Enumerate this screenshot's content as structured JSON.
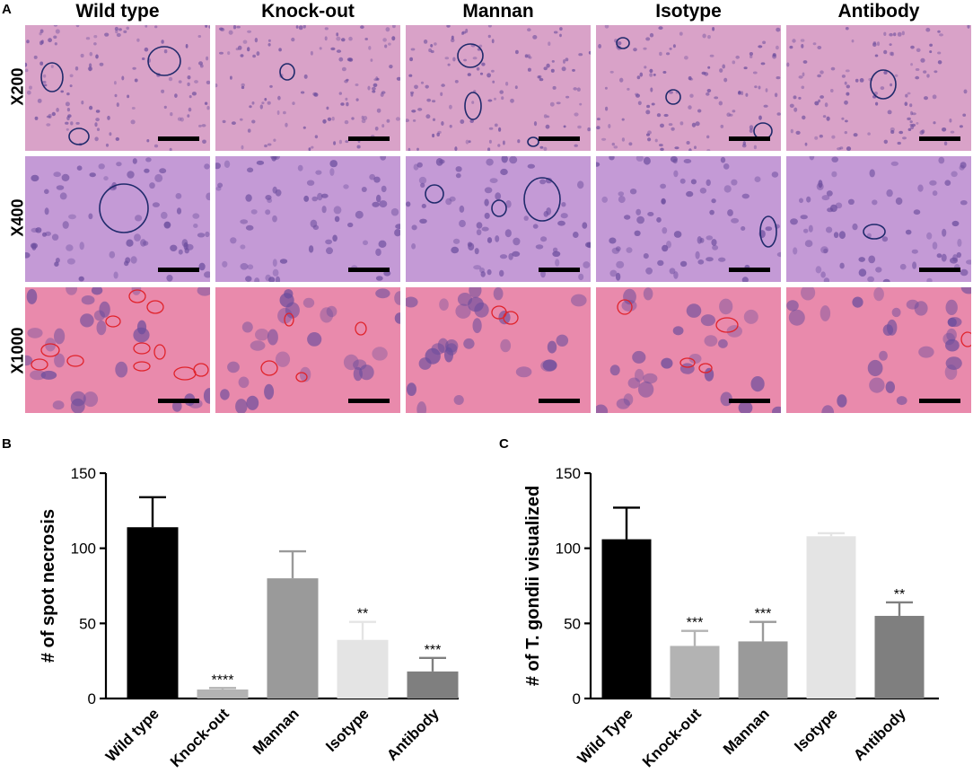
{
  "panel_labels": {
    "a": "A",
    "b": "B",
    "c": "C"
  },
  "micrograph_grid": {
    "columns": [
      "Wild type",
      "Knock-out",
      "Mannan",
      "Isotype",
      "Antibody"
    ],
    "rows": [
      "X200",
      "X400",
      "X1000"
    ],
    "colors": {
      "x200_tissue": "#d9a2c8",
      "x400_tissue": "#c49ad6",
      "x1000_tissue": "#e98aac",
      "nucleus": "#6a4c9c",
      "circle_blue": "#1f2a6b",
      "circle_red": "#e0232b",
      "scale_bar": "#000000"
    }
  },
  "chart_data": [
    {
      "type": "bar",
      "ylabel": "# of spot necrosis",
      "xlabel": "",
      "categories": [
        "Wild type",
        "Knock-out",
        "Mannan",
        "Isotype",
        "Antibody"
      ],
      "values": [
        114,
        6,
        80,
        39,
        18
      ],
      "errors": [
        20,
        1,
        18,
        12,
        9
      ],
      "significance": [
        "",
        "****",
        "",
        "**",
        "***"
      ],
      "colors": [
        "#000000",
        "#b3b3b3",
        "#9a9a9a",
        "#e4e4e4",
        "#7f7f7f"
      ],
      "ylim": [
        0,
        150
      ],
      "yticks": [
        "0",
        "50",
        "100",
        "150"
      ]
    },
    {
      "type": "bar",
      "ylabel": "# of T. gondii visualized",
      "xlabel": "",
      "categories": [
        "Wild Type",
        "Knock-out",
        "Mannan",
        "Isotype",
        "Antibody"
      ],
      "values": [
        106,
        35,
        38,
        108,
        55
      ],
      "errors": [
        21,
        10,
        13,
        2,
        9
      ],
      "significance": [
        "",
        "***",
        "***",
        "",
        "**"
      ],
      "colors": [
        "#000000",
        "#b3b3b3",
        "#9a9a9a",
        "#e4e4e4",
        "#7f7f7f"
      ],
      "ylim": [
        0,
        150
      ],
      "yticks": [
        "0",
        "50",
        "100",
        "150"
      ]
    }
  ]
}
